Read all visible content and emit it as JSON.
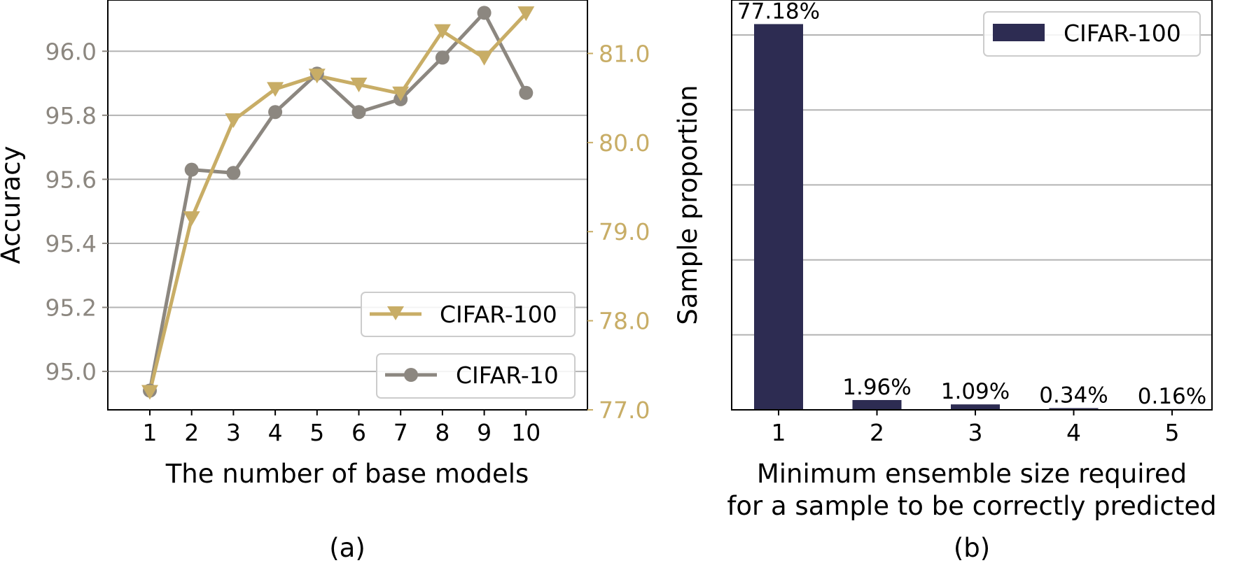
{
  "colors": {
    "cifar10": "#8c8780",
    "cifar100": "#c8ad66",
    "bar": "#2d2c52",
    "grid": "#b3b3b3",
    "axis": "#000000"
  },
  "chart_data": [
    {
      "type": "line",
      "caption": "(a)",
      "xlabel": "The number of base models",
      "ylabel": "Accuracy",
      "x": [
        1,
        2,
        3,
        4,
        5,
        6,
        7,
        8,
        9,
        10
      ],
      "x_tick_labels": [
        "1",
        "2",
        "3",
        "4",
        "5",
        "6",
        "7",
        "8",
        "9",
        "10"
      ],
      "ylim": [
        94.88,
        96.16
      ],
      "y_ticks": [
        95.0,
        95.2,
        95.4,
        95.6,
        95.8,
        96.0
      ],
      "y_tick_labels": [
        "95.0",
        "95.2",
        "95.4",
        "95.6",
        "95.8",
        "96.0"
      ],
      "y2lim": [
        77.0,
        81.6
      ],
      "y2_ticks": [
        77.0,
        78.0,
        79.0,
        80.0,
        81.0
      ],
      "y2_tick_labels": [
        "77.0",
        "78.0",
        "79.0",
        "80.0",
        "81.0"
      ],
      "grid": "horizontal",
      "series": [
        {
          "name": "CIFAR-10",
          "axis": "left",
          "marker": "circle",
          "values": [
            94.94,
            95.63,
            95.62,
            95.81,
            95.93,
            95.81,
            95.85,
            95.98,
            96.12,
            95.87
          ]
        },
        {
          "name": "CIFAR-100",
          "axis": "right",
          "marker": "triangle-down",
          "values": [
            77.2,
            79.15,
            80.25,
            80.6,
            80.75,
            80.65,
            80.55,
            81.25,
            80.95,
            81.45
          ]
        }
      ],
      "legend_placement": "lower-right"
    },
    {
      "type": "bar",
      "caption": "(b)",
      "xlabel_lines": [
        "Minimum ensemble size required",
        "for a sample to be correctly predicted"
      ],
      "ylabel": "Sample proportion",
      "categories": [
        "1",
        "2",
        "3",
        "4",
        "5"
      ],
      "values": [
        77.18,
        1.96,
        1.09,
        0.34,
        0.16
      ],
      "data_labels": [
        "77.18%",
        "1.96%",
        "1.09%",
        "0.34%",
        "0.16%"
      ],
      "ylim": [
        0,
        82.0
      ],
      "y_gridlines": [
        15,
        30,
        45,
        60,
        75
      ],
      "grid": "horizontal",
      "series": [
        {
          "name": "CIFAR-100"
        }
      ],
      "legend_placement": "top-right"
    }
  ]
}
